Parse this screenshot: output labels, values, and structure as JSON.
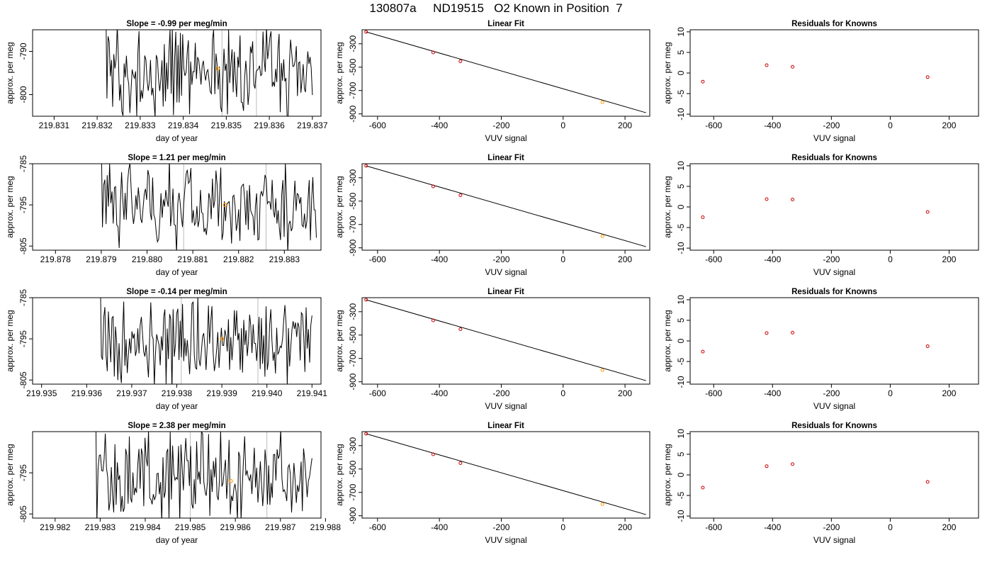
{
  "figure": {
    "title": "130807a     ND19515   O2 Known in Position  7",
    "colors": {
      "trace": "#000000",
      "known_point": "#ff9900",
      "residual_point": "#cc0000",
      "gridline": "#bbbbbb"
    }
  },
  "chart_data": [
    {
      "panel": "timeseries",
      "row": 1,
      "type": "line",
      "title": "Slope =  -0.99  per meg/min",
      "xlabel": "day of year",
      "ylabel": "approx. per meg",
      "xlim": [
        219.8305,
        219.8372
      ],
      "ylim": [
        -805,
        -785
      ],
      "xticks": [
        219.831,
        219.832,
        219.833,
        219.834,
        219.835,
        219.836,
        219.837
      ],
      "xtick_labels": [
        "219.831",
        "219.832",
        "219.833",
        "219.834",
        "219.835",
        "219.836",
        "219.837"
      ],
      "yticks": [
        -790,
        -800
      ],
      "ytick_labels": [
        "-790",
        "-800"
      ],
      "trace_start": 219.8322,
      "trace_end": 219.837,
      "reference_lines": [
        219.8349,
        219.8357
      ],
      "marker": {
        "x": 219.8348,
        "y": -794.0
      }
    },
    {
      "panel": "fit",
      "row": 1,
      "type": "scatter",
      "title": "Linear Fit",
      "xlabel": "VUV signal",
      "ylabel": "approx. per meg",
      "xlim": [
        -650,
        280
      ],
      "ylim": [
        -920,
        -180
      ],
      "xticks": [
        -600,
        -400,
        -200,
        0,
        200
      ],
      "xtick_labels": [
        "-600",
        "-400",
        "-200",
        "0",
        "200"
      ],
      "yticks": [
        -300,
        -500,
        -700,
        -900
      ],
      "ytick_labels": [
        "-300",
        "-500",
        "-700",
        "-900"
      ],
      "points": [
        {
          "x": -637,
          "y": -198
        },
        {
          "x": -420,
          "y": -374
        },
        {
          "x": -332,
          "y": -450
        },
        {
          "x": 127,
          "y": -800
        }
      ],
      "highlight_point": 3,
      "fit_line": {
        "x": [
          -637,
          268
        ],
        "y": [
          -198,
          -890
        ]
      }
    },
    {
      "panel": "residuals",
      "row": 1,
      "type": "scatter",
      "title": "Residuals for Knowns",
      "xlabel": "VUV signal",
      "ylabel": "approx. per meg",
      "xlim": [
        -680,
        300
      ],
      "ylim": [
        -10.5,
        10.5
      ],
      "xticks": [
        -600,
        -400,
        -200,
        0,
        200
      ],
      "xtick_labels": [
        "-600",
        "-400",
        "-200",
        "0",
        "200"
      ],
      "yticks": [
        10,
        5,
        0,
        -5,
        -10
      ],
      "ytick_labels": [
        "10",
        "5",
        "0",
        "-5",
        "-10"
      ],
      "points": [
        {
          "x": -637,
          "y": -2.1
        },
        {
          "x": -420,
          "y": 1.9
        },
        {
          "x": -332,
          "y": 1.5
        },
        {
          "x": 127,
          "y": -1.0
        }
      ]
    },
    {
      "panel": "timeseries",
      "row": 2,
      "type": "line",
      "title": "Slope =  1.21  per meg/min",
      "xlabel": "day of year",
      "ylabel": "approx. per meg",
      "xlim": [
        219.8775,
        219.8838
      ],
      "ylim": [
        -806,
        -785
      ],
      "xticks": [
        219.878,
        219.879,
        219.88,
        219.881,
        219.882,
        219.883
      ],
      "xtick_labels": [
        "219.878",
        "219.879",
        "219.880",
        "219.881",
        "219.882",
        "219.883"
      ],
      "yticks": [
        -785,
        -795,
        -805
      ],
      "ytick_labels": [
        "-785",
        "-795",
        "-805"
      ],
      "trace_start": 219.879,
      "trace_end": 219.8837,
      "reference_lines": [
        219.8808,
        219.8826
      ],
      "marker": {
        "x": 219.8817,
        "y": -795.0
      }
    },
    {
      "panel": "fit",
      "row": 2,
      "type": "scatter",
      "title": "Linear Fit",
      "xlabel": "VUV signal",
      "ylabel": "approx. per meg",
      "xlim": [
        -650,
        280
      ],
      "ylim": [
        -920,
        -180
      ],
      "xticks": [
        -600,
        -400,
        -200,
        0,
        200
      ],
      "xtick_labels": [
        "-600",
        "-400",
        "-200",
        "0",
        "200"
      ],
      "yticks": [
        -300,
        -500,
        -700,
        -900
      ],
      "ytick_labels": [
        "-300",
        "-500",
        "-700",
        "-900"
      ],
      "points": [
        {
          "x": -637,
          "y": -198
        },
        {
          "x": -420,
          "y": -374
        },
        {
          "x": -332,
          "y": -450
        },
        {
          "x": 127,
          "y": -800
        }
      ],
      "highlight_point": 3,
      "fit_line": {
        "x": [
          -637,
          268
        ],
        "y": [
          -198,
          -890
        ]
      }
    },
    {
      "panel": "residuals",
      "row": 2,
      "type": "scatter",
      "title": "Residuals for Knowns",
      "xlabel": "VUV signal",
      "ylabel": "approx. per meg",
      "xlim": [
        -680,
        300
      ],
      "ylim": [
        -10.5,
        10.5
      ],
      "xticks": [
        -600,
        -400,
        -200,
        0,
        200
      ],
      "xtick_labels": [
        "-600",
        "-400",
        "-200",
        "0",
        "200"
      ],
      "yticks": [
        10,
        5,
        0,
        -5,
        -10
      ],
      "ytick_labels": [
        "10",
        "5",
        "0",
        "-5",
        "-10"
      ],
      "points": [
        {
          "x": -637,
          "y": -2.5
        },
        {
          "x": -420,
          "y": 1.9
        },
        {
          "x": -332,
          "y": 1.8
        },
        {
          "x": 127,
          "y": -1.2
        }
      ]
    },
    {
      "panel": "timeseries",
      "row": 3,
      "type": "line",
      "title": "Slope =  -0.14  per meg/min",
      "xlabel": "day of year",
      "ylabel": "approx. per meg",
      "xlim": [
        219.9348,
        219.9412
      ],
      "ylim": [
        -806,
        -785
      ],
      "xticks": [
        219.935,
        219.936,
        219.937,
        219.938,
        219.939,
        219.94,
        219.941
      ],
      "xtick_labels": [
        "219.935",
        "219.936",
        "219.937",
        "219.938",
        "219.939",
        "219.940",
        "219.941"
      ],
      "yticks": [
        -785,
        -795,
        -805
      ],
      "ytick_labels": [
        "-785",
        "-795",
        "-805"
      ],
      "trace_start": 219.9363,
      "trace_end": 219.941,
      "reference_lines": [
        219.9381,
        219.9398
      ],
      "marker": {
        "x": 219.939,
        "y": -795.0
      }
    },
    {
      "panel": "fit",
      "row": 3,
      "type": "scatter",
      "title": "Linear Fit",
      "xlabel": "VUV signal",
      "ylabel": "approx. per meg",
      "xlim": [
        -650,
        280
      ],
      "ylim": [
        -920,
        -180
      ],
      "xticks": [
        -600,
        -400,
        -200,
        0,
        200
      ],
      "xtick_labels": [
        "-600",
        "-400",
        "-200",
        "0",
        "200"
      ],
      "yticks": [
        -300,
        -500,
        -700,
        -900
      ],
      "ytick_labels": [
        "-300",
        "-500",
        "-700",
        "-900"
      ],
      "points": [
        {
          "x": -637,
          "y": -198
        },
        {
          "x": -420,
          "y": -374
        },
        {
          "x": -332,
          "y": -450
        },
        {
          "x": 127,
          "y": -800
        }
      ],
      "highlight_point": 3,
      "fit_line": {
        "x": [
          -637,
          268
        ],
        "y": [
          -198,
          -890
        ]
      }
    },
    {
      "panel": "residuals",
      "row": 3,
      "type": "scatter",
      "title": "Residuals for Knowns",
      "xlabel": "VUV signal",
      "ylabel": "approx. per meg",
      "xlim": [
        -680,
        300
      ],
      "ylim": [
        -10.5,
        10.5
      ],
      "xticks": [
        -600,
        -400,
        -200,
        0,
        200
      ],
      "xtick_labels": [
        "-600",
        "-400",
        "-200",
        "0",
        "200"
      ],
      "yticks": [
        10,
        5,
        0,
        -5,
        -10
      ],
      "ytick_labels": [
        "10",
        "5",
        "0",
        "-5",
        "-10"
      ],
      "points": [
        {
          "x": -637,
          "y": -2.6
        },
        {
          "x": -420,
          "y": 1.9
        },
        {
          "x": -332,
          "y": 2.0
        },
        {
          "x": 127,
          "y": -1.3
        }
      ]
    },
    {
      "panel": "timeseries",
      "row": 4,
      "type": "line",
      "title": "Slope =  2.38  per meg/min",
      "xlabel": "day of year",
      "ylabel": "approx. per meg",
      "xlim": [
        219.9815,
        219.9879
      ],
      "ylim": [
        -806,
        -785
      ],
      "xticks": [
        219.982,
        219.983,
        219.984,
        219.985,
        219.986,
        219.987,
        219.988
      ],
      "xtick_labels": [
        "219.982",
        "219.983",
        "219.984",
        "219.985",
        "219.986",
        "219.987",
        "219.988"
      ],
      "yticks": [
        -795,
        -805
      ],
      "ytick_labels": [
        "-795",
        "-805"
      ],
      "trace_start": 219.9829,
      "trace_end": 219.9877,
      "reference_lines": [
        219.985,
        219.9867
      ],
      "marker": {
        "x": 219.9859,
        "y": -797.0
      }
    },
    {
      "panel": "fit",
      "row": 4,
      "type": "scatter",
      "title": "Linear Fit",
      "xlabel": "VUV signal",
      "ylabel": "approx. per meg",
      "xlim": [
        -650,
        280
      ],
      "ylim": [
        -920,
        -180
      ],
      "xticks": [
        -600,
        -400,
        -200,
        0,
        200
      ],
      "xtick_labels": [
        "-600",
        "-400",
        "-200",
        "0",
        "200"
      ],
      "yticks": [
        -300,
        -500,
        -700,
        -900
      ],
      "ytick_labels": [
        "-300",
        "-500",
        "-700",
        "-900"
      ],
      "points": [
        {
          "x": -637,
          "y": -198
        },
        {
          "x": -420,
          "y": -374
        },
        {
          "x": -332,
          "y": -450
        },
        {
          "x": 127,
          "y": -800
        }
      ],
      "highlight_point": 3,
      "fit_line": {
        "x": [
          -637,
          268
        ],
        "y": [
          -198,
          -890
        ]
      }
    },
    {
      "panel": "residuals",
      "row": 4,
      "type": "scatter",
      "title": "Residuals for Knowns",
      "xlabel": "VUV signal",
      "ylabel": "approx. per meg",
      "xlim": [
        -680,
        300
      ],
      "ylim": [
        -10.5,
        10.5
      ],
      "xticks": [
        -600,
        -400,
        -200,
        0,
        200
      ],
      "xtick_labels": [
        "-600",
        "-400",
        "-200",
        "0",
        "200"
      ],
      "yticks": [
        10,
        5,
        0,
        -5,
        -10
      ],
      "ytick_labels": [
        "10",
        "5",
        "0",
        "-5",
        "-10"
      ],
      "points": [
        {
          "x": -637,
          "y": -3.1
        },
        {
          "x": -420,
          "y": 2.1
        },
        {
          "x": -332,
          "y": 2.6
        },
        {
          "x": 127,
          "y": -1.7
        }
      ]
    }
  ]
}
